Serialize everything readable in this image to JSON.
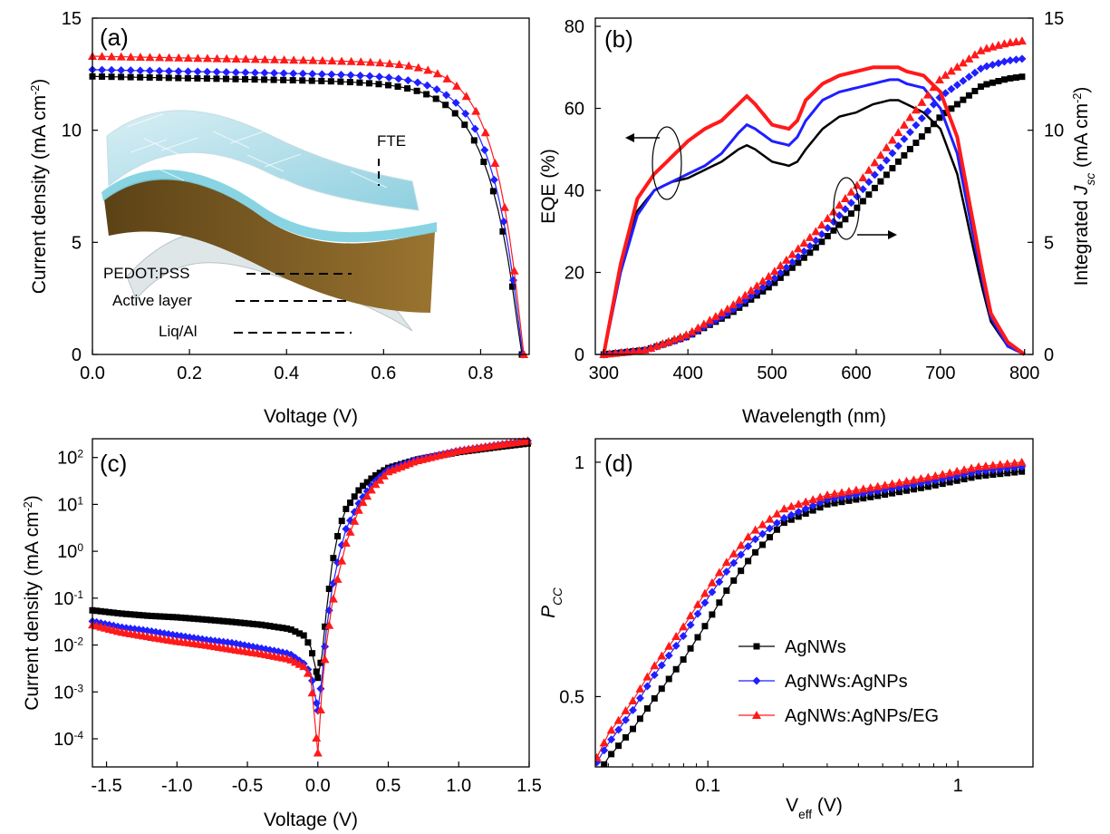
{
  "colors": {
    "black": "#000000",
    "blue": "#1f1fff",
    "red": "#ff1a1a",
    "inset_film": "#9fd8e6",
    "inset_active": "#7a5a20"
  },
  "legend": [
    {
      "name": "AgNWs",
      "color": "#000000",
      "marker": "square"
    },
    {
      "name": "AgNWs:AgNPs",
      "color": "#1f1fff",
      "marker": "diamond"
    },
    {
      "name": "AgNWs:AgNPs/EG",
      "color": "#ff1a1a",
      "marker": "triangle"
    }
  ],
  "chart_data": [
    {
      "panel": "(a)",
      "type": "line",
      "xlabel": "Voltage (V)",
      "ylabel_main": "Current density (mA cm",
      "ylabel_sup": "-2",
      "ylabel_end": ")",
      "xlim": [
        0,
        0.9
      ],
      "ylim": [
        0,
        15
      ],
      "xticks": [
        "0.0",
        "0.2",
        "0.4",
        "0.6",
        "0.8"
      ],
      "yticks": [
        "0",
        "5",
        "10",
        "15"
      ],
      "inset_labels": [
        "FTE",
        "PEDOT:PSS",
        "Active layer",
        "Liq/Al"
      ],
      "series": [
        {
          "jsc": 12.4,
          "voc": 0.885,
          "k": 0.062
        },
        {
          "jsc": 12.7,
          "voc": 0.887,
          "k": 0.058
        },
        {
          "jsc": 13.3,
          "voc": 0.889,
          "k": 0.054
        }
      ]
    },
    {
      "panel": "(b)",
      "type": "line",
      "xlabel": "Wavelength (nm)",
      "ylabel": "EQE (%)",
      "ylabel2_main": "Integrated ",
      "ylabel2_italic": "J",
      "ylabel2_sub": "sc",
      "ylabel2_end": " (mA cm",
      "ylabel2_sup": "-2",
      "ylabel2_close": ")",
      "xlim": [
        290,
        810
      ],
      "ylim": [
        0,
        82
      ],
      "y2lim": [
        0,
        15
      ],
      "xticks": [
        "300",
        "400",
        "500",
        "600",
        "700",
        "800"
      ],
      "yticks": [
        "0",
        "20",
        "40",
        "60",
        "80"
      ],
      "y2ticks": [
        "0",
        "5",
        "10",
        "15"
      ],
      "eqe_x": [
        300,
        320,
        340,
        360,
        380,
        400,
        420,
        440,
        460,
        470,
        480,
        500,
        520,
        530,
        540,
        560,
        580,
        600,
        620,
        640,
        650,
        660,
        680,
        700,
        720,
        740,
        750,
        760,
        780,
        800
      ],
      "eqe": [
        [
          0,
          22,
          35,
          40,
          42,
          43,
          45,
          47,
          50,
          51,
          50,
          47,
          46,
          47,
          50,
          55,
          58,
          59,
          61,
          62,
          62,
          61,
          59,
          55,
          44,
          25,
          16,
          8,
          2,
          0
        ],
        [
          0,
          20,
          34,
          40,
          42,
          44,
          46,
          49,
          54,
          56,
          55,
          52,
          51,
          53,
          57,
          62,
          64,
          65,
          66,
          67,
          67,
          66,
          65,
          60,
          49,
          28,
          18,
          9,
          2,
          0
        ],
        [
          0,
          22,
          38,
          44,
          48,
          52,
          55,
          57,
          61,
          63,
          61,
          56,
          55,
          57,
          62,
          66,
          68,
          69,
          70,
          70,
          70,
          69,
          68,
          64,
          53,
          31,
          20,
          10,
          3,
          0
        ]
      ],
      "jsc_x": [
        300,
        350,
        400,
        450,
        500,
        550,
        600,
        650,
        700,
        750,
        780,
        800
      ],
      "jsc": [
        [
          0,
          0.2,
          0.8,
          1.8,
          3.1,
          4.7,
          6.5,
          8.6,
          10.6,
          12.0,
          12.3,
          12.4
        ],
        [
          0,
          0.2,
          0.8,
          1.9,
          3.3,
          5.0,
          7.0,
          9.3,
          11.5,
          12.8,
          13.1,
          13.2
        ],
        [
          0,
          0.2,
          0.9,
          2.1,
          3.6,
          5.4,
          7.5,
          9.9,
          12.3,
          13.6,
          13.9,
          14.0
        ]
      ]
    },
    {
      "panel": "(c)",
      "type": "line",
      "xlabel": "Voltage (V)",
      "ylabel_main": "Current density (mA cm",
      "ylabel_sup": "-2",
      "ylabel_end": ")",
      "xlim": [
        -1.6,
        1.5
      ],
      "ylim_log10": [
        -4.6,
        2.4
      ],
      "yscale": "log",
      "xticks": [
        "-1.5",
        "-1.0",
        "-0.5",
        "0.0",
        "0.5",
        "1.0",
        "1.5"
      ],
      "ytick_exponents": [
        "-4",
        "-3",
        "-2",
        "-1",
        "0",
        "1",
        "2"
      ],
      "x": [
        -1.6,
        -1.4,
        -1.2,
        -1.0,
        -0.8,
        -0.6,
        -0.4,
        -0.2,
        -0.1,
        -0.05,
        0,
        0.03,
        0.06,
        0.1,
        0.15,
        0.2,
        0.3,
        0.4,
        0.5,
        0.7,
        1.0,
        1.3,
        1.5
      ],
      "series": [
        [
          0.055,
          0.047,
          0.042,
          0.039,
          0.035,
          0.031,
          0.027,
          0.022,
          0.016,
          0.009,
          0.002,
          0.006,
          0.05,
          0.5,
          3,
          8,
          22,
          40,
          60,
          90,
          130,
          170,
          200
        ],
        [
          0.032,
          0.024,
          0.02,
          0.016,
          0.013,
          0.011,
          0.0085,
          0.0065,
          0.004,
          0.0025,
          0.0004,
          0.002,
          0.02,
          0.15,
          0.8,
          3,
          12,
          30,
          55,
          90,
          140,
          190,
          230
        ],
        [
          0.027,
          0.019,
          0.015,
          0.012,
          0.01,
          0.008,
          0.0065,
          0.005,
          0.0035,
          0.002,
          5e-05,
          0.0012,
          0.01,
          0.07,
          0.35,
          1.5,
          9,
          25,
          50,
          85,
          140,
          190,
          230
        ]
      ]
    },
    {
      "panel": "(d)",
      "type": "line",
      "xscale": "log",
      "xlabel_main": "V",
      "xlabel_sub": "eff",
      "xlabel_end": " (V)",
      "ylabel_main": "P",
      "ylabel_sub": "CC",
      "xlim_log10": [
        -1.45,
        0.3
      ],
      "ylim": [
        0.35,
        1.05
      ],
      "xticks": [
        {
          "label": "0.1",
          "v": 0.1
        },
        {
          "label": "1",
          "v": 1
        }
      ],
      "yticks": [
        "0.5",
        "1"
      ],
      "x": [
        0.036,
        0.04,
        0.05,
        0.06,
        0.08,
        0.1,
        0.12,
        0.15,
        0.2,
        0.3,
        0.5,
        0.8,
        1.2,
        1.8
      ],
      "series": [
        [
          0.33,
          0.37,
          0.43,
          0.49,
          0.58,
          0.66,
          0.73,
          0.8,
          0.87,
          0.91,
          0.93,
          0.95,
          0.97,
          0.98
        ],
        [
          0.36,
          0.4,
          0.47,
          0.54,
          0.63,
          0.71,
          0.77,
          0.83,
          0.88,
          0.92,
          0.94,
          0.96,
          0.98,
          0.99
        ],
        [
          0.37,
          0.42,
          0.49,
          0.56,
          0.65,
          0.73,
          0.79,
          0.85,
          0.9,
          0.93,
          0.95,
          0.97,
          0.99,
          1.0
        ]
      ]
    }
  ]
}
